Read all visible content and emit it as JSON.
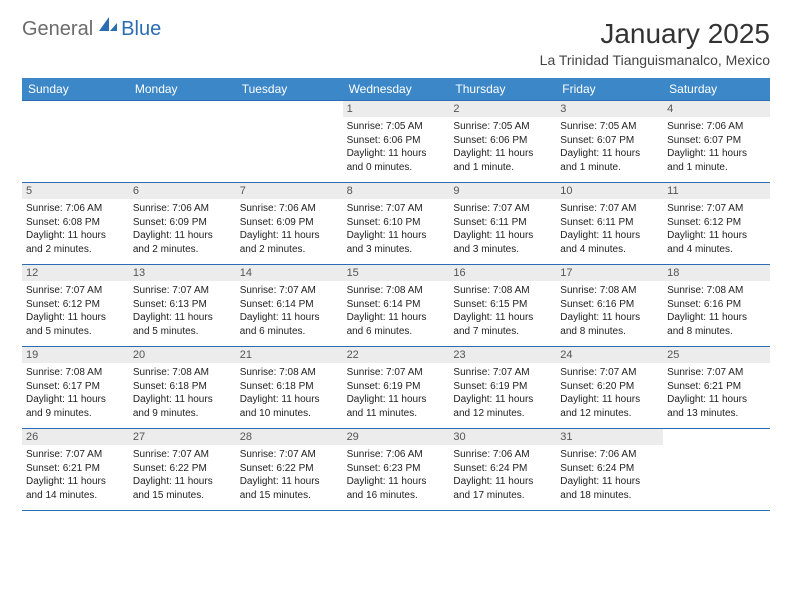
{
  "logo": {
    "general": "General",
    "blue": "Blue",
    "icon_color": "#2a6db3"
  },
  "title": "January 2025",
  "location": "La Trinidad Tianguismanalco, Mexico",
  "colors": {
    "header_bg": "#3b87c8",
    "rule": "#2a6db3",
    "daynum_bg": "#ececec",
    "text": "#222222"
  },
  "dow": [
    "Sunday",
    "Monday",
    "Tuesday",
    "Wednesday",
    "Thursday",
    "Friday",
    "Saturday"
  ],
  "weeks": [
    [
      {
        "empty": true
      },
      {
        "empty": true
      },
      {
        "empty": true
      },
      {
        "num": "1",
        "sunrise": "Sunrise: 7:05 AM",
        "sunset": "Sunset: 6:06 PM",
        "day1": "Daylight: 11 hours",
        "day2": "and 0 minutes."
      },
      {
        "num": "2",
        "sunrise": "Sunrise: 7:05 AM",
        "sunset": "Sunset: 6:06 PM",
        "day1": "Daylight: 11 hours",
        "day2": "and 1 minute."
      },
      {
        "num": "3",
        "sunrise": "Sunrise: 7:05 AM",
        "sunset": "Sunset: 6:07 PM",
        "day1": "Daylight: 11 hours",
        "day2": "and 1 minute."
      },
      {
        "num": "4",
        "sunrise": "Sunrise: 7:06 AM",
        "sunset": "Sunset: 6:07 PM",
        "day1": "Daylight: 11 hours",
        "day2": "and 1 minute."
      }
    ],
    [
      {
        "num": "5",
        "sunrise": "Sunrise: 7:06 AM",
        "sunset": "Sunset: 6:08 PM",
        "day1": "Daylight: 11 hours",
        "day2": "and 2 minutes."
      },
      {
        "num": "6",
        "sunrise": "Sunrise: 7:06 AM",
        "sunset": "Sunset: 6:09 PM",
        "day1": "Daylight: 11 hours",
        "day2": "and 2 minutes."
      },
      {
        "num": "7",
        "sunrise": "Sunrise: 7:06 AM",
        "sunset": "Sunset: 6:09 PM",
        "day1": "Daylight: 11 hours",
        "day2": "and 2 minutes."
      },
      {
        "num": "8",
        "sunrise": "Sunrise: 7:07 AM",
        "sunset": "Sunset: 6:10 PM",
        "day1": "Daylight: 11 hours",
        "day2": "and 3 minutes."
      },
      {
        "num": "9",
        "sunrise": "Sunrise: 7:07 AM",
        "sunset": "Sunset: 6:11 PM",
        "day1": "Daylight: 11 hours",
        "day2": "and 3 minutes."
      },
      {
        "num": "10",
        "sunrise": "Sunrise: 7:07 AM",
        "sunset": "Sunset: 6:11 PM",
        "day1": "Daylight: 11 hours",
        "day2": "and 4 minutes."
      },
      {
        "num": "11",
        "sunrise": "Sunrise: 7:07 AM",
        "sunset": "Sunset: 6:12 PM",
        "day1": "Daylight: 11 hours",
        "day2": "and 4 minutes."
      }
    ],
    [
      {
        "num": "12",
        "sunrise": "Sunrise: 7:07 AM",
        "sunset": "Sunset: 6:12 PM",
        "day1": "Daylight: 11 hours",
        "day2": "and 5 minutes."
      },
      {
        "num": "13",
        "sunrise": "Sunrise: 7:07 AM",
        "sunset": "Sunset: 6:13 PM",
        "day1": "Daylight: 11 hours",
        "day2": "and 5 minutes."
      },
      {
        "num": "14",
        "sunrise": "Sunrise: 7:07 AM",
        "sunset": "Sunset: 6:14 PM",
        "day1": "Daylight: 11 hours",
        "day2": "and 6 minutes."
      },
      {
        "num": "15",
        "sunrise": "Sunrise: 7:08 AM",
        "sunset": "Sunset: 6:14 PM",
        "day1": "Daylight: 11 hours",
        "day2": "and 6 minutes."
      },
      {
        "num": "16",
        "sunrise": "Sunrise: 7:08 AM",
        "sunset": "Sunset: 6:15 PM",
        "day1": "Daylight: 11 hours",
        "day2": "and 7 minutes."
      },
      {
        "num": "17",
        "sunrise": "Sunrise: 7:08 AM",
        "sunset": "Sunset: 6:16 PM",
        "day1": "Daylight: 11 hours",
        "day2": "and 8 minutes."
      },
      {
        "num": "18",
        "sunrise": "Sunrise: 7:08 AM",
        "sunset": "Sunset: 6:16 PM",
        "day1": "Daylight: 11 hours",
        "day2": "and 8 minutes."
      }
    ],
    [
      {
        "num": "19",
        "sunrise": "Sunrise: 7:08 AM",
        "sunset": "Sunset: 6:17 PM",
        "day1": "Daylight: 11 hours",
        "day2": "and 9 minutes."
      },
      {
        "num": "20",
        "sunrise": "Sunrise: 7:08 AM",
        "sunset": "Sunset: 6:18 PM",
        "day1": "Daylight: 11 hours",
        "day2": "and 9 minutes."
      },
      {
        "num": "21",
        "sunrise": "Sunrise: 7:08 AM",
        "sunset": "Sunset: 6:18 PM",
        "day1": "Daylight: 11 hours",
        "day2": "and 10 minutes."
      },
      {
        "num": "22",
        "sunrise": "Sunrise: 7:07 AM",
        "sunset": "Sunset: 6:19 PM",
        "day1": "Daylight: 11 hours",
        "day2": "and 11 minutes."
      },
      {
        "num": "23",
        "sunrise": "Sunrise: 7:07 AM",
        "sunset": "Sunset: 6:19 PM",
        "day1": "Daylight: 11 hours",
        "day2": "and 12 minutes."
      },
      {
        "num": "24",
        "sunrise": "Sunrise: 7:07 AM",
        "sunset": "Sunset: 6:20 PM",
        "day1": "Daylight: 11 hours",
        "day2": "and 12 minutes."
      },
      {
        "num": "25",
        "sunrise": "Sunrise: 7:07 AM",
        "sunset": "Sunset: 6:21 PM",
        "day1": "Daylight: 11 hours",
        "day2": "and 13 minutes."
      }
    ],
    [
      {
        "num": "26",
        "sunrise": "Sunrise: 7:07 AM",
        "sunset": "Sunset: 6:21 PM",
        "day1": "Daylight: 11 hours",
        "day2": "and 14 minutes."
      },
      {
        "num": "27",
        "sunrise": "Sunrise: 7:07 AM",
        "sunset": "Sunset: 6:22 PM",
        "day1": "Daylight: 11 hours",
        "day2": "and 15 minutes."
      },
      {
        "num": "28",
        "sunrise": "Sunrise: 7:07 AM",
        "sunset": "Sunset: 6:22 PM",
        "day1": "Daylight: 11 hours",
        "day2": "and 15 minutes."
      },
      {
        "num": "29",
        "sunrise": "Sunrise: 7:06 AM",
        "sunset": "Sunset: 6:23 PM",
        "day1": "Daylight: 11 hours",
        "day2": "and 16 minutes."
      },
      {
        "num": "30",
        "sunrise": "Sunrise: 7:06 AM",
        "sunset": "Sunset: 6:24 PM",
        "day1": "Daylight: 11 hours",
        "day2": "and 17 minutes."
      },
      {
        "num": "31",
        "sunrise": "Sunrise: 7:06 AM",
        "sunset": "Sunset: 6:24 PM",
        "day1": "Daylight: 11 hours",
        "day2": "and 18 minutes."
      },
      {
        "empty": true
      }
    ]
  ]
}
